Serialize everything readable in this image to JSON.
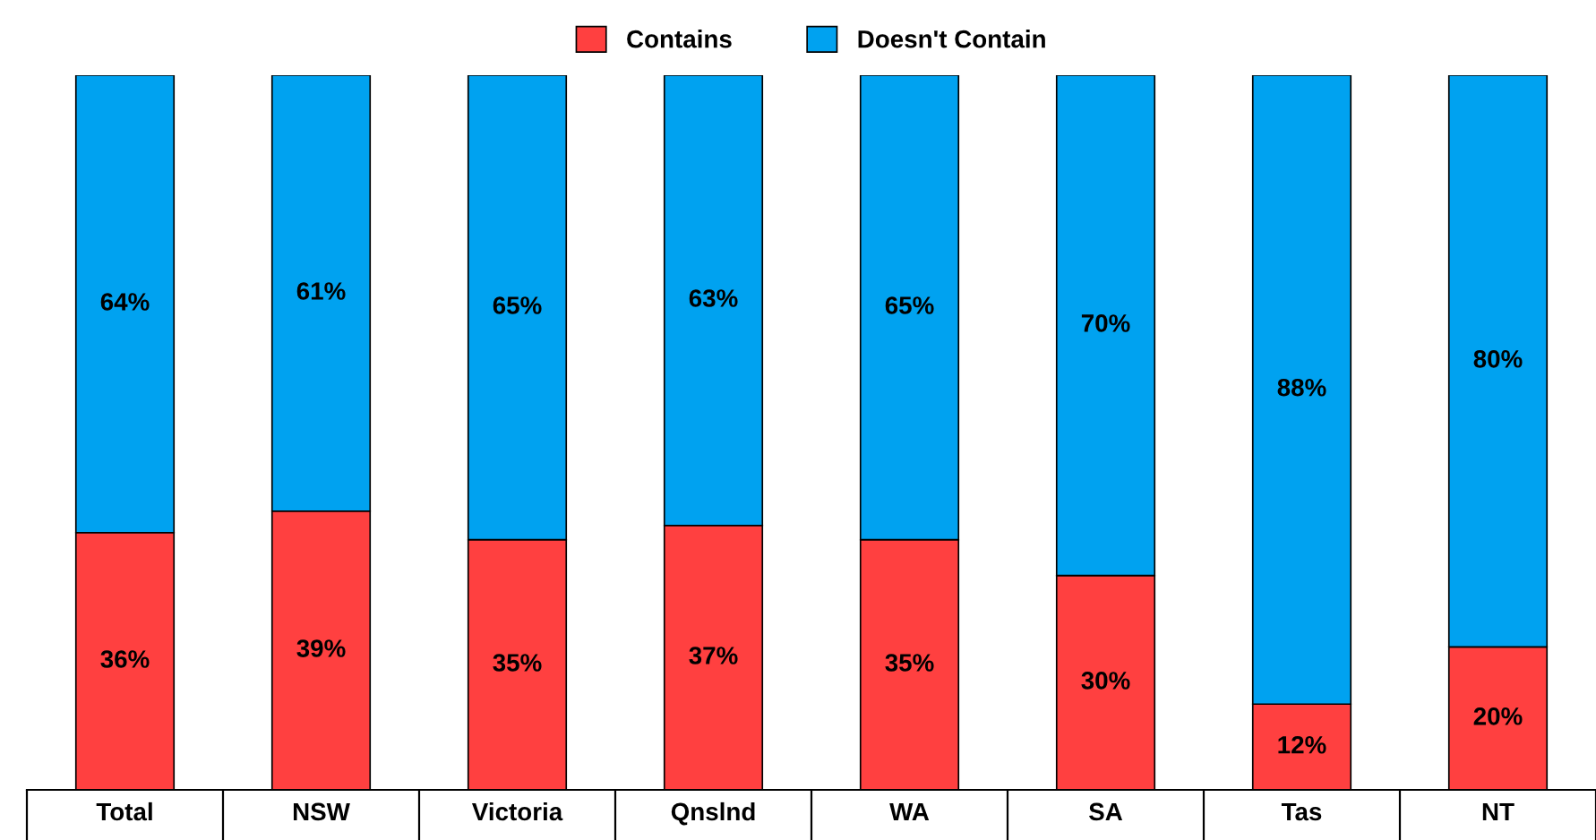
{
  "chart_data": {
    "type": "bar",
    "stacked": true,
    "legend": "top",
    "categories": [
      "Total",
      "NSW",
      "Victoria",
      "Qnslnd",
      "WA",
      "SA",
      "Tas",
      "NT"
    ],
    "series": [
      {
        "name": "Contains",
        "color": "#ff4040",
        "values": [
          36,
          39,
          35,
          37,
          35,
          30,
          12,
          20
        ],
        "value_labels": [
          "36%",
          "39%",
          "35%",
          "37%",
          "35%",
          "30%",
          "12%",
          "20%"
        ]
      },
      {
        "name": "Doesn't Contain",
        "color": "#00a2f0",
        "values": [
          64,
          61,
          65,
          63,
          65,
          70,
          88,
          80
        ],
        "value_labels": [
          "64%",
          "61%",
          "65%",
          "63%",
          "65%",
          "70%",
          "88%",
          "80%"
        ]
      }
    ]
  }
}
